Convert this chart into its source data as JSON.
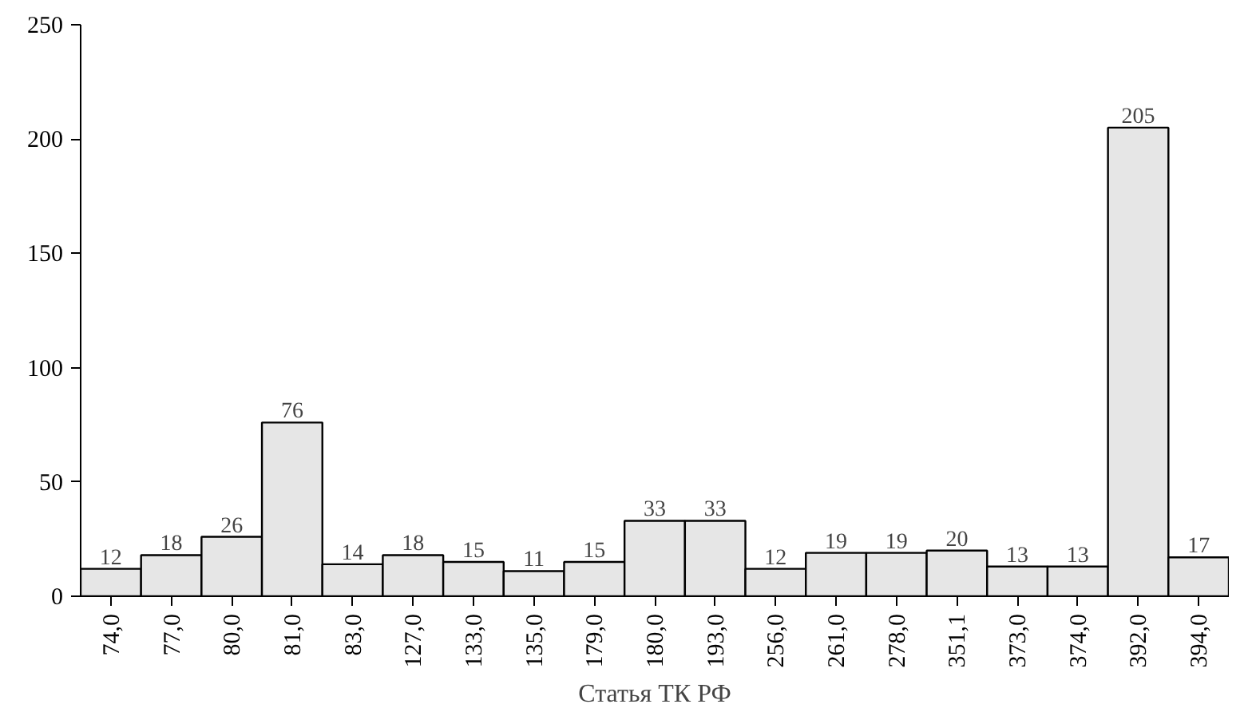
{
  "chart_data": {
    "type": "bar",
    "xlabel": "Статья ТК РФ",
    "categories": [
      "74,0",
      "77,0",
      "80,0",
      "81,0",
      "83,0",
      "127,0",
      "133,0",
      "135,0",
      "179,0",
      "180,0",
      "193,0",
      "256,0",
      "261,0",
      "278,0",
      "351,1",
      "373,0",
      "374,0",
      "392,0",
      "394,0"
    ],
    "values": [
      12,
      18,
      26,
      76,
      14,
      18,
      15,
      11,
      15,
      33,
      33,
      12,
      19,
      19,
      20,
      13,
      13,
      205,
      17
    ],
    "color": "#e6e6e6",
    "ylim": [
      0,
      250
    ],
    "yticks": [
      0,
      50,
      100,
      150,
      200,
      250
    ],
    "grid": false,
    "data_labels": true
  }
}
